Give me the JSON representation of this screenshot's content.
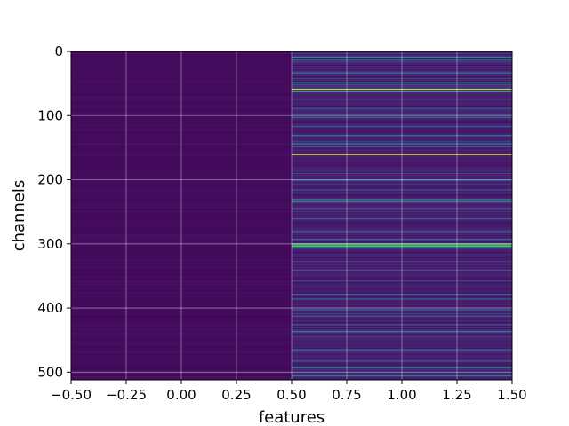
{
  "chart_data": {
    "type": "heatmap",
    "title": "",
    "xlabel": "features",
    "ylabel": "channels",
    "colormap": "viridis",
    "grid": true,
    "xlim": [
      -0.5,
      1.5
    ],
    "ylim": [
      512,
      0
    ],
    "x_ticks": [
      -0.5,
      -0.25,
      0.0,
      0.25,
      0.5,
      0.75,
      1.0,
      1.25,
      1.5
    ],
    "x_tick_labels": [
      "−0.50",
      "−0.25",
      "0.00",
      "0.25",
      "0.50",
      "0.75",
      "1.00",
      "1.25",
      "1.50"
    ],
    "y_ticks": [
      0,
      100,
      200,
      300,
      400,
      500
    ],
    "y_tick_labels": [
      "0",
      "100",
      "200",
      "300",
      "400",
      "500"
    ],
    "n_rows": 512,
    "n_cols": 2,
    "column0": {
      "description": "nearly uniform low values",
      "base_value": 0.02
    },
    "column1": {
      "base_value": 0.05,
      "highlight_rows": [
        {
          "row": 8,
          "value": 0.5
        },
        {
          "row": 12,
          "value": 0.4
        },
        {
          "row": 33,
          "value": 0.35
        },
        {
          "row": 48,
          "value": 0.55
        },
        {
          "row": 58,
          "value": 0.9
        },
        {
          "row": 62,
          "value": 0.6
        },
        {
          "row": 88,
          "value": 0.3
        },
        {
          "row": 102,
          "value": 0.4
        },
        {
          "row": 130,
          "value": 0.35
        },
        {
          "row": 143,
          "value": 0.45
        },
        {
          "row": 148,
          "value": 0.3
        },
        {
          "row": 160,
          "value": 0.95
        },
        {
          "row": 200,
          "value": 0.4
        },
        {
          "row": 215,
          "value": 0.3
        },
        {
          "row": 230,
          "value": 0.5
        },
        {
          "row": 234,
          "value": 0.45
        },
        {
          "row": 260,
          "value": 0.3
        },
        {
          "row": 292,
          "value": 0.35
        },
        {
          "row": 299,
          "value": 0.65
        },
        {
          "row": 301,
          "value": 0.75
        },
        {
          "row": 303,
          "value": 0.7
        },
        {
          "row": 305,
          "value": 0.55
        },
        {
          "row": 340,
          "value": 0.3
        },
        {
          "row": 378,
          "value": 0.35
        },
        {
          "row": 402,
          "value": 0.4
        },
        {
          "row": 412,
          "value": 0.35
        },
        {
          "row": 425,
          "value": 0.3
        },
        {
          "row": 436,
          "value": 0.45
        },
        {
          "row": 464,
          "value": 0.3
        },
        {
          "row": 482,
          "value": 0.35
        },
        {
          "row": 492,
          "value": 0.5
        },
        {
          "row": 505,
          "value": 0.4
        }
      ]
    }
  }
}
